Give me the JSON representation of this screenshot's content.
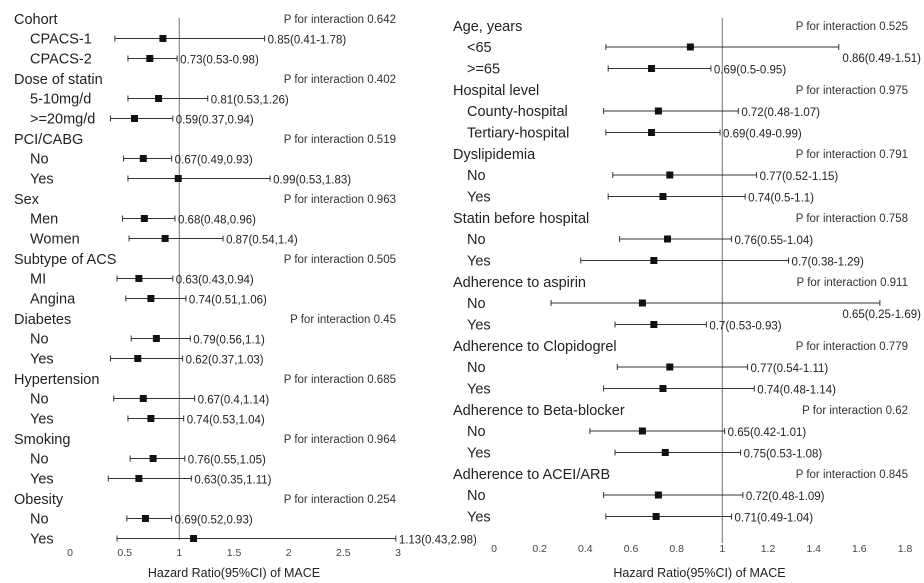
{
  "chart_data": [
    {
      "type": "forest",
      "xlabel": "Hazard Ratio(95%CI) of MACE",
      "xlim": [
        0,
        3
      ],
      "xticks": [
        "0",
        "0.5",
        "1",
        "1.5",
        "2",
        "2.5",
        "3"
      ],
      "reference_line": 1,
      "groups": [
        {
          "label": "Cohort",
          "p_interaction": "P for interaction 0.642",
          "rows": [
            {
              "label": "CPACS-1",
              "hr": 0.85,
              "lo": 0.41,
              "hi": 1.78,
              "text": "0.85(0.41-1.78)"
            },
            {
              "label": "CPACS-2",
              "hr": 0.73,
              "lo": 0.53,
              "hi": 0.98,
              "text": "0.73(0.53-0.98)"
            }
          ]
        },
        {
          "label": "Dose of statin",
          "p_interaction": "P for interaction 0.402",
          "rows": [
            {
              "label": "5-10mg/d",
              "hr": 0.81,
              "lo": 0.53,
              "hi": 1.26,
              "text": "0.81(0.53,1.26)"
            },
            {
              "label": ">=20mg/d",
              "hr": 0.59,
              "lo": 0.37,
              "hi": 0.94,
              "text": "0.59(0.37,0.94)"
            }
          ]
        },
        {
          "label": "PCI/CABG",
          "p_interaction": "P for interaction 0.519",
          "rows": [
            {
              "label": "No",
              "hr": 0.67,
              "lo": 0.49,
              "hi": 0.93,
              "text": "0.67(0.49,0.93)"
            },
            {
              "label": "Yes",
              "hr": 0.99,
              "lo": 0.53,
              "hi": 1.83,
              "text": "0.99(0.53,1.83)"
            }
          ]
        },
        {
          "label": "Sex",
          "p_interaction": "P for interaction 0.963",
          "rows": [
            {
              "label": "Men",
              "hr": 0.68,
              "lo": 0.48,
              "hi": 0.96,
              "text": "0.68(0.48,0.96)"
            },
            {
              "label": "Women",
              "hr": 0.87,
              "lo": 0.54,
              "hi": 1.4,
              "text": "0.87(0.54,1.4)"
            }
          ]
        },
        {
          "label": "Subtype of ACS",
          "p_interaction": "P for interaction 0.505",
          "rows": [
            {
              "label": "MI",
              "hr": 0.63,
              "lo": 0.43,
              "hi": 0.94,
              "text": "0.63(0.43,0.94)"
            },
            {
              "label": "Angina",
              "hr": 0.74,
              "lo": 0.51,
              "hi": 1.06,
              "text": "0.74(0.51,1.06)"
            }
          ]
        },
        {
          "label": "Diabetes",
          "p_interaction": "P for interaction 0.45",
          "rows": [
            {
              "label": "No",
              "hr": 0.79,
              "lo": 0.56,
              "hi": 1.1,
              "text": "0.79(0.56,1.1)"
            },
            {
              "label": "Yes",
              "hr": 0.62,
              "lo": 0.37,
              "hi": 1.03,
              "text": "0.62(0.37,1.03)"
            }
          ]
        },
        {
          "label": "Hypertension",
          "p_interaction": "P for interaction 0.685",
          "rows": [
            {
              "label": "No",
              "hr": 0.67,
              "lo": 0.4,
              "hi": 1.14,
              "text": "0.67(0.4,1.14)"
            },
            {
              "label": "Yes",
              "hr": 0.74,
              "lo": 0.53,
              "hi": 1.04,
              "text": "0.74(0.53,1.04)"
            }
          ]
        },
        {
          "label": "Smoking",
          "p_interaction": "P for interaction 0.964",
          "rows": [
            {
              "label": "No",
              "hr": 0.76,
              "lo": 0.55,
              "hi": 1.05,
              "text": "0.76(0.55,1.05)"
            },
            {
              "label": "Yes",
              "hr": 0.63,
              "lo": 0.35,
              "hi": 1.11,
              "text": "0.63(0.35,1.11)"
            }
          ]
        },
        {
          "label": "Obesity",
          "p_interaction": "P for interaction 0.254",
          "rows": [
            {
              "label": "No",
              "hr": 0.69,
              "lo": 0.52,
              "hi": 0.93,
              "text": "0.69(0.52,0.93)"
            },
            {
              "label": "Yes",
              "hr": 1.13,
              "lo": 0.43,
              "hi": 2.98,
              "text": "1.13(0.43,2.98)"
            }
          ]
        }
      ]
    },
    {
      "type": "forest",
      "xlabel": "Hazard Ratio(95%CI) of MACE",
      "xlim": [
        0,
        1.8
      ],
      "xticks": [
        "0",
        "0.2",
        "0.4",
        "0.6",
        "0.8",
        "1",
        "1.2",
        "1.4",
        "1.6",
        "1.8"
      ],
      "reference_line": 1,
      "groups": [
        {
          "label": "Age, years",
          "p_interaction": "P for interaction 0.525",
          "rows": [
            {
              "label": "<65",
              "hr": 0.86,
              "lo": 0.49,
              "hi": 1.51,
              "text": "0.86(0.49-1.51)"
            },
            {
              "label": ">=65",
              "hr": 0.69,
              "lo": 0.5,
              "hi": 0.95,
              "text": "0.69(0.5-0.95)"
            }
          ]
        },
        {
          "label": "Hospital level",
          "p_interaction": "P for interaction 0.975",
          "rows": [
            {
              "label": "County-hospital",
              "hr": 0.72,
              "lo": 0.48,
              "hi": 1.07,
              "text": "0.72(0.48-1.07)"
            },
            {
              "label": "Tertiary-hospital",
              "hr": 0.69,
              "lo": 0.49,
              "hi": 0.99,
              "text": "0.69(0.49-0.99)"
            }
          ]
        },
        {
          "label": "Dyslipidemia",
          "p_interaction": "P for interaction 0.791",
          "rows": [
            {
              "label": "No",
              "hr": 0.77,
              "lo": 0.52,
              "hi": 1.15,
              "text": "0.77(0.52-1.15)"
            },
            {
              "label": "Yes",
              "hr": 0.74,
              "lo": 0.5,
              "hi": 1.1,
              "text": "0.74(0.5-1.1)"
            }
          ]
        },
        {
          "label": "Statin before hospital",
          "p_interaction": "P for interaction 0.758",
          "rows": [
            {
              "label": "No",
              "hr": 0.76,
              "lo": 0.55,
              "hi": 1.04,
              "text": "0.76(0.55-1.04)"
            },
            {
              "label": "Yes",
              "hr": 0.7,
              "lo": 0.38,
              "hi": 1.29,
              "text": "0.7(0.38-1.29)"
            }
          ]
        },
        {
          "label": "Adherence to aspirin",
          "p_interaction": "P for interaction 0.911",
          "rows": [
            {
              "label": "No",
              "hr": 0.65,
              "lo": 0.25,
              "hi": 1.69,
              "text": "0.65(0.25-1.69)"
            },
            {
              "label": "Yes",
              "hr": 0.7,
              "lo": 0.53,
              "hi": 0.93,
              "text": "0.7(0.53-0.93)"
            }
          ]
        },
        {
          "label": "Adherence to Clopidogrel",
          "p_interaction": "P for interaction 0.779",
          "rows": [
            {
              "label": "No",
              "hr": 0.77,
              "lo": 0.54,
              "hi": 1.11,
              "text": "0.77(0.54-1.11)"
            },
            {
              "label": "Yes",
              "hr": 0.74,
              "lo": 0.48,
              "hi": 1.14,
              "text": "0.74(0.48-1.14)"
            }
          ]
        },
        {
          "label": "Adherence to Beta-blocker",
          "p_interaction": "P for interaction 0.62",
          "rows": [
            {
              "label": "No",
              "hr": 0.65,
              "lo": 0.42,
              "hi": 1.01,
              "text": "0.65(0.42-1.01)"
            },
            {
              "label": "Yes",
              "hr": 0.75,
              "lo": 0.53,
              "hi": 1.08,
              "text": "0.75(0.53-1.08)"
            }
          ]
        },
        {
          "label": "Adherence to ACEI/ARB",
          "p_interaction": "P for interaction 0.845",
          "rows": [
            {
              "label": "No",
              "hr": 0.72,
              "lo": 0.48,
              "hi": 1.09,
              "text": "0.72(0.48-1.09)"
            },
            {
              "label": "Yes",
              "hr": 0.71,
              "lo": 0.49,
              "hi": 1.04,
              "text": "0.71(0.49-1.04)"
            }
          ]
        }
      ]
    }
  ]
}
